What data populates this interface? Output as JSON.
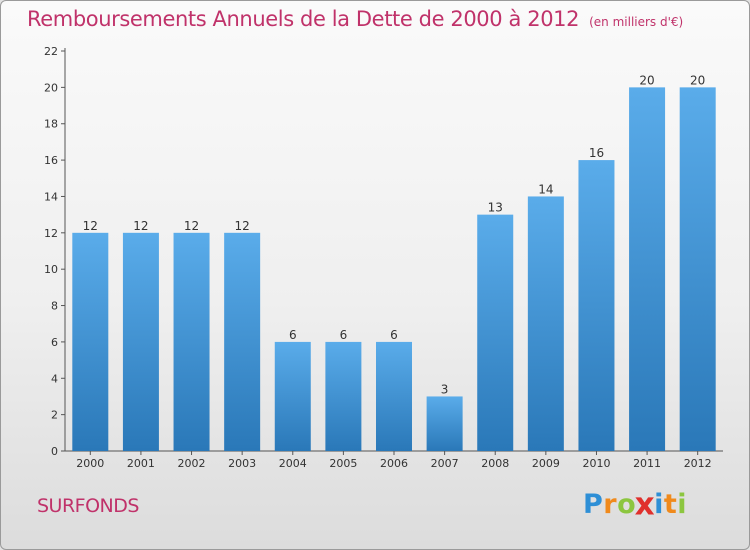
{
  "header": {
    "title": "Remboursements Annuels de la Dette de 2000 à 2012",
    "unit": "(en milliers d'€)"
  },
  "footer": {
    "place": "SURFONDS",
    "logo_letters": [
      {
        "ch": "P",
        "color": "#2e8fd6"
      },
      {
        "ch": "r",
        "color": "#f08a1c"
      },
      {
        "ch": "o",
        "color": "#8cc63f"
      },
      {
        "ch": "x",
        "color": "#e0302c"
      },
      {
        "ch": "i",
        "color": "#2e8fd6"
      },
      {
        "ch": "t",
        "color": "#f08a1c"
      },
      {
        "ch": "i",
        "color": "#8cc63f"
      }
    ]
  },
  "colors": {
    "title": "#c0326a",
    "bar_top": "#5aacea",
    "bar_bottom": "#2a78b8"
  },
  "chart_data": {
    "type": "bar",
    "title": "Remboursements Annuels de la Dette de 2000 à 2012",
    "categories": [
      "2000",
      "2001",
      "2002",
      "2003",
      "2004",
      "2005",
      "2006",
      "2007",
      "2008",
      "2009",
      "2010",
      "2011",
      "2012"
    ],
    "values": [
      12,
      12,
      12,
      12,
      6,
      6,
      6,
      3,
      13,
      14,
      16,
      20,
      20
    ],
    "ylim": [
      0,
      22
    ],
    "yticks": [
      0,
      2,
      4,
      6,
      8,
      10,
      12,
      14,
      16,
      18,
      20,
      22
    ],
    "grid": false,
    "data_labels": true
  }
}
